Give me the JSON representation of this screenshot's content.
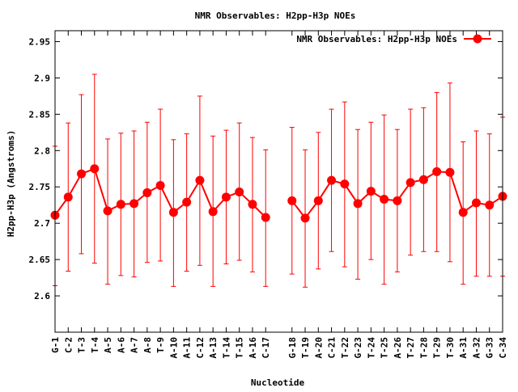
{
  "chart_data": {
    "type": "line",
    "title": "NMR Observables: H2pp-H3p NOEs",
    "xlabel": "Nucleotide",
    "ylabel": "H2pp-H3p (Angstroms)",
    "ylim": [
      2.55,
      2.965
    ],
    "yticks": [
      2.6,
      2.65,
      2.7,
      2.75,
      2.8,
      2.85,
      2.9,
      2.95
    ],
    "ytick_labels": [
      "2.6",
      "2.65",
      "2.7",
      "2.75",
      "2.8",
      "2.85",
      "2.9",
      "2.95"
    ],
    "grid": false,
    "legend_position": "top-right",
    "categories": [
      "G-1",
      "C-2",
      "T-3",
      "T-4",
      "A-5",
      "A-6",
      "A-7",
      "A-8",
      "T-9",
      "A-10",
      "A-11",
      "C-12",
      "A-13",
      "T-14",
      "T-15",
      "A-16",
      "C-17",
      "G-18",
      "T-19",
      "A-20",
      "C-21",
      "T-22",
      "G-23",
      "T-24",
      "T-25",
      "A-26",
      "T-27",
      "T-28",
      "T-29",
      "T-30",
      "A-31",
      "A-32",
      "G-33",
      "C-34"
    ],
    "x_positions": [
      1,
      2,
      3,
      4,
      5,
      6,
      7,
      8,
      9,
      10,
      11,
      12,
      13,
      14,
      15,
      16,
      17,
      19,
      20,
      21,
      22,
      23,
      24,
      25,
      26,
      27,
      28,
      29,
      30,
      31,
      32,
      33,
      34,
      35
    ],
    "x_range": [
      1,
      35
    ],
    "series": [
      {
        "name": "NMR Observables: H2pp-H3p NOEs",
        "color": "#ff0000",
        "segments": [
          [
            0,
            16
          ],
          [
            17,
            33
          ]
        ],
        "values": [
          2.711,
          2.736,
          2.768,
          2.775,
          2.717,
          2.726,
          2.727,
          2.742,
          2.752,
          2.715,
          2.729,
          2.759,
          2.716,
          2.736,
          2.743,
          2.726,
          2.708,
          2.731,
          2.707,
          2.731,
          2.759,
          2.754,
          2.727,
          2.744,
          2.733,
          2.731,
          2.756,
          2.76,
          2.771,
          2.77,
          2.715,
          2.728,
          2.725,
          2.737
        ],
        "err_low": [
          2.614,
          2.634,
          2.658,
          2.645,
          2.616,
          2.628,
          2.626,
          2.646,
          2.648,
          2.613,
          2.634,
          2.642,
          2.613,
          2.644,
          2.649,
          2.633,
          2.613,
          2.63,
          2.612,
          2.637,
          2.661,
          2.64,
          2.623,
          2.65,
          2.616,
          2.633,
          2.656,
          2.661,
          2.661,
          2.647,
          2.616,
          2.627,
          2.627,
          2.627
        ],
        "err_high": [
          2.806,
          2.838,
          2.877,
          2.905,
          2.816,
          2.824,
          2.827,
          2.839,
          2.857,
          2.815,
          2.823,
          2.875,
          2.82,
          2.828,
          2.838,
          2.818,
          2.801,
          2.832,
          2.801,
          2.825,
          2.857,
          2.867,
          2.829,
          2.839,
          2.849,
          2.829,
          2.857,
          2.859,
          2.88,
          2.893,
          2.812,
          2.827,
          2.823,
          2.846
        ]
      }
    ]
  }
}
